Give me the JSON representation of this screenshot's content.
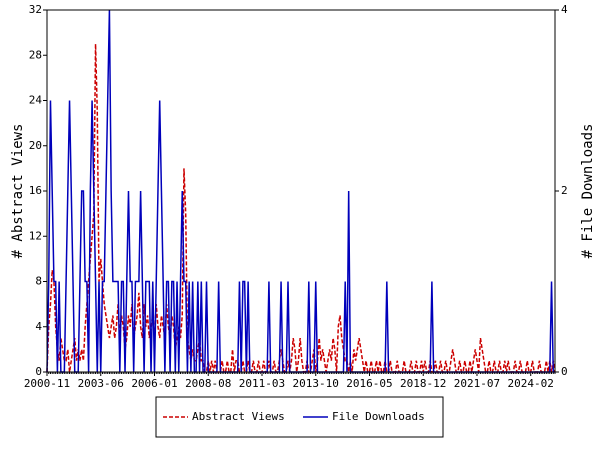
{
  "chart_data": {
    "type": "line",
    "ylabel": "# Abstract Views",
    "y2label": "# File Downloads",
    "categories": [
      "2000-11",
      null,
      null,
      null,
      null,
      null,
      null,
      null,
      null,
      null,
      null,
      null,
      null,
      null,
      null,
      null,
      null,
      null,
      null,
      null,
      null,
      null,
      null,
      null,
      null,
      null,
      null,
      null,
      null,
      null,
      null,
      "2003-06",
      null,
      null,
      null,
      null,
      null,
      null,
      null,
      null,
      null,
      null,
      null,
      null,
      null,
      null,
      null,
      null,
      null,
      null,
      null,
      null,
      null,
      null,
      null,
      null,
      null,
      null,
      null,
      null,
      null,
      null,
      "2006-01",
      null,
      null,
      null,
      null,
      null,
      null,
      null,
      null,
      null,
      null,
      null,
      null,
      null,
      null,
      null,
      null,
      null,
      null,
      null,
      null,
      null,
      null,
      null,
      null,
      null,
      null,
      null,
      null,
      null,
      null,
      "2008-08",
      null,
      null,
      null,
      null,
      null,
      null,
      null,
      null,
      null,
      null,
      null,
      null,
      null,
      null,
      null,
      null,
      null,
      null,
      null,
      null,
      null,
      null,
      null,
      null,
      null,
      null,
      null,
      null,
      null,
      null,
      "2011-03",
      null,
      null,
      null,
      null,
      null,
      null,
      null,
      null,
      null,
      null,
      null,
      null,
      null,
      null,
      null,
      null,
      null,
      null,
      null,
      null,
      null,
      null,
      null,
      null,
      null,
      null,
      null,
      null,
      null,
      null,
      "2013-10",
      null,
      null,
      null,
      null,
      null,
      null,
      null,
      null,
      null,
      null,
      null,
      null,
      null,
      null,
      null,
      null,
      null,
      null,
      null,
      null,
      null,
      null,
      null,
      null,
      null,
      null,
      null,
      null,
      null,
      null,
      "2016-05",
      null,
      null,
      null,
      null,
      null,
      null,
      null,
      null,
      null,
      null,
      null,
      null,
      null,
      null,
      null,
      null,
      null,
      null,
      null,
      null,
      null,
      null,
      null,
      null,
      null,
      null,
      null,
      null,
      null,
      null,
      "2018-12",
      null,
      null,
      null,
      null,
      null,
      null,
      null,
      null,
      null,
      null,
      null,
      null,
      null,
      null,
      null,
      null,
      null,
      null,
      null,
      null,
      null,
      null,
      null,
      null,
      null,
      null,
      null,
      null,
      null,
      null,
      "2021-07",
      null,
      null,
      null,
      null,
      null,
      null,
      null,
      null,
      null,
      null,
      null,
      null,
      null,
      null,
      null,
      null,
      null,
      null,
      null,
      null,
      null,
      null,
      null,
      null,
      null,
      null,
      null,
      null,
      null,
      null,
      "2024-02",
      null,
      null,
      null,
      null,
      null,
      null,
      null,
      null,
      null,
      null,
      null,
      null,
      null,
      null
    ],
    "series": [
      {
        "name": "Abstract Views",
        "color": "#cc0000",
        "dashed": true,
        "axis": "y",
        "values": [
          0,
          4,
          6,
          9,
          8,
          4,
          2,
          1,
          3,
          2,
          1,
          1,
          2,
          0,
          1,
          2,
          3,
          1,
          2,
          1,
          2,
          1,
          4,
          6,
          8,
          10,
          12,
          14,
          29,
          23,
          8,
          10,
          8,
          6,
          5,
          4,
          3,
          4,
          5,
          3,
          4,
          6,
          3,
          5,
          4,
          2,
          3,
          5,
          4,
          6,
          3,
          4,
          5,
          7,
          4,
          3,
          6,
          4,
          5,
          3,
          4,
          5,
          3,
          6,
          4,
          3,
          5,
          4,
          3,
          6,
          4,
          3,
          5,
          4,
          2,
          3,
          4,
          3,
          5,
          18,
          14,
          3,
          2,
          1,
          2,
          1,
          1,
          2,
          3,
          1,
          1,
          0,
          0,
          1,
          0,
          1,
          0,
          1,
          0,
          0,
          0,
          1,
          0,
          0,
          1,
          0,
          0,
          2,
          0,
          1,
          1,
          0,
          0,
          1,
          0,
          0,
          1,
          0,
          0,
          1,
          0,
          0,
          1,
          0,
          0,
          1,
          0,
          0,
          1,
          0,
          0,
          1,
          0,
          0,
          1,
          2,
          1,
          0,
          0,
          1,
          0,
          1,
          3,
          2,
          0,
          1,
          3,
          1,
          0,
          0,
          1,
          0,
          0,
          1,
          2,
          0,
          1,
          3,
          1,
          2,
          1,
          0,
          1,
          2,
          1,
          3,
          2,
          0,
          4,
          5,
          3,
          2,
          1,
          1,
          0,
          1,
          0,
          2,
          1,
          2,
          3,
          2,
          1,
          0,
          1,
          0,
          0,
          1,
          0,
          0,
          1,
          0,
          1,
          0,
          0,
          1,
          0,
          0,
          1,
          0,
          0,
          0,
          1,
          0,
          0,
          0,
          1,
          0,
          0,
          0,
          1,
          0,
          0,
          1,
          0,
          0,
          1,
          0,
          1,
          0,
          0,
          1,
          0,
          0,
          1,
          0,
          0,
          1,
          0,
          0,
          1,
          0,
          0,
          1,
          2,
          1,
          0,
          0,
          1,
          0,
          0,
          1,
          0,
          0,
          1,
          0,
          1,
          2,
          1,
          0,
          3,
          2,
          1,
          0,
          0,
          1,
          0,
          0,
          1,
          0,
          0,
          1,
          0,
          0,
          1,
          0,
          1,
          0,
          0,
          0,
          1,
          0,
          0,
          1,
          0,
          0,
          0,
          1,
          0,
          0,
          1,
          0,
          0,
          0,
          1,
          0,
          0,
          0,
          1,
          0,
          1,
          0,
          1,
          0
        ]
      },
      {
        "name": "File Downloads",
        "color": "#0000bb",
        "dashed": false,
        "axis": "y2",
        "values": [
          0,
          1,
          3,
          2,
          1,
          1,
          0,
          1,
          0,
          0,
          0,
          1,
          2,
          3,
          2,
          1,
          0,
          0,
          0,
          1,
          2,
          2,
          1,
          1,
          0,
          2,
          3,
          2,
          1,
          0,
          1,
          0,
          1,
          1,
          2,
          3,
          4,
          2,
          1,
          1,
          1,
          1,
          0,
          1,
          1,
          0,
          1,
          2,
          1,
          1,
          0,
          1,
          1,
          1,
          2,
          1,
          0,
          1,
          1,
          1,
          0,
          1,
          0,
          1,
          2,
          3,
          2,
          1,
          0,
          1,
          1,
          0,
          1,
          1,
          0,
          1,
          0,
          1,
          2,
          1,
          1,
          0,
          1,
          0,
          1,
          0,
          0,
          1,
          0,
          1,
          0,
          0,
          1,
          0,
          0,
          0,
          0,
          0,
          0,
          1,
          0,
          0,
          0,
          0,
          0,
          0,
          0,
          0,
          0,
          0,
          0,
          1,
          0,
          1,
          1,
          0,
          1,
          0,
          0,
          0,
          0,
          0,
          0,
          0,
          0,
          0,
          0,
          0,
          1,
          0,
          0,
          0,
          0,
          0,
          0,
          1,
          0,
          0,
          0,
          1,
          0,
          0,
          0,
          0,
          0,
          0,
          0,
          0,
          0,
          0,
          0,
          1,
          0,
          0,
          0,
          1,
          0,
          0,
          0,
          0,
          0,
          0,
          0,
          0,
          0,
          0,
          0,
          0,
          0,
          0,
          0,
          0,
          1,
          0,
          2,
          0,
          0,
          0,
          0,
          0,
          0,
          0,
          0,
          0,
          0,
          0,
          0,
          0,
          0,
          0,
          0,
          0,
          0,
          0,
          0,
          0,
          1,
          0,
          0,
          0,
          0,
          0,
          0,
          0,
          0,
          0,
          0,
          0,
          0,
          0,
          0,
          0,
          0,
          0,
          0,
          0,
          0,
          0,
          0,
          0,
          0,
          0,
          1,
          0,
          0,
          0,
          0,
          0,
          0,
          0,
          0,
          0,
          0,
          0,
          0,
          0,
          0,
          0,
          0,
          0,
          0,
          0,
          0,
          0,
          0,
          0,
          0,
          0,
          0,
          0,
          0,
          0,
          0,
          0,
          0,
          0,
          0,
          0,
          0,
          0,
          0,
          0,
          0,
          0,
          0,
          0,
          0,
          0,
          0,
          0,
          0,
          0,
          0,
          0,
          0,
          0,
          0,
          0,
          0,
          0,
          0,
          0,
          0,
          0,
          0,
          0,
          0,
          0,
          0,
          0,
          0,
          1,
          0,
          0
        ]
      }
    ],
    "ylim": [
      0,
      32
    ],
    "yticks": [
      0,
      4,
      8,
      12,
      16,
      20,
      24,
      28,
      32
    ],
    "y2lim": [
      0,
      4
    ],
    "y2ticks": [
      0,
      2,
      4
    ]
  }
}
